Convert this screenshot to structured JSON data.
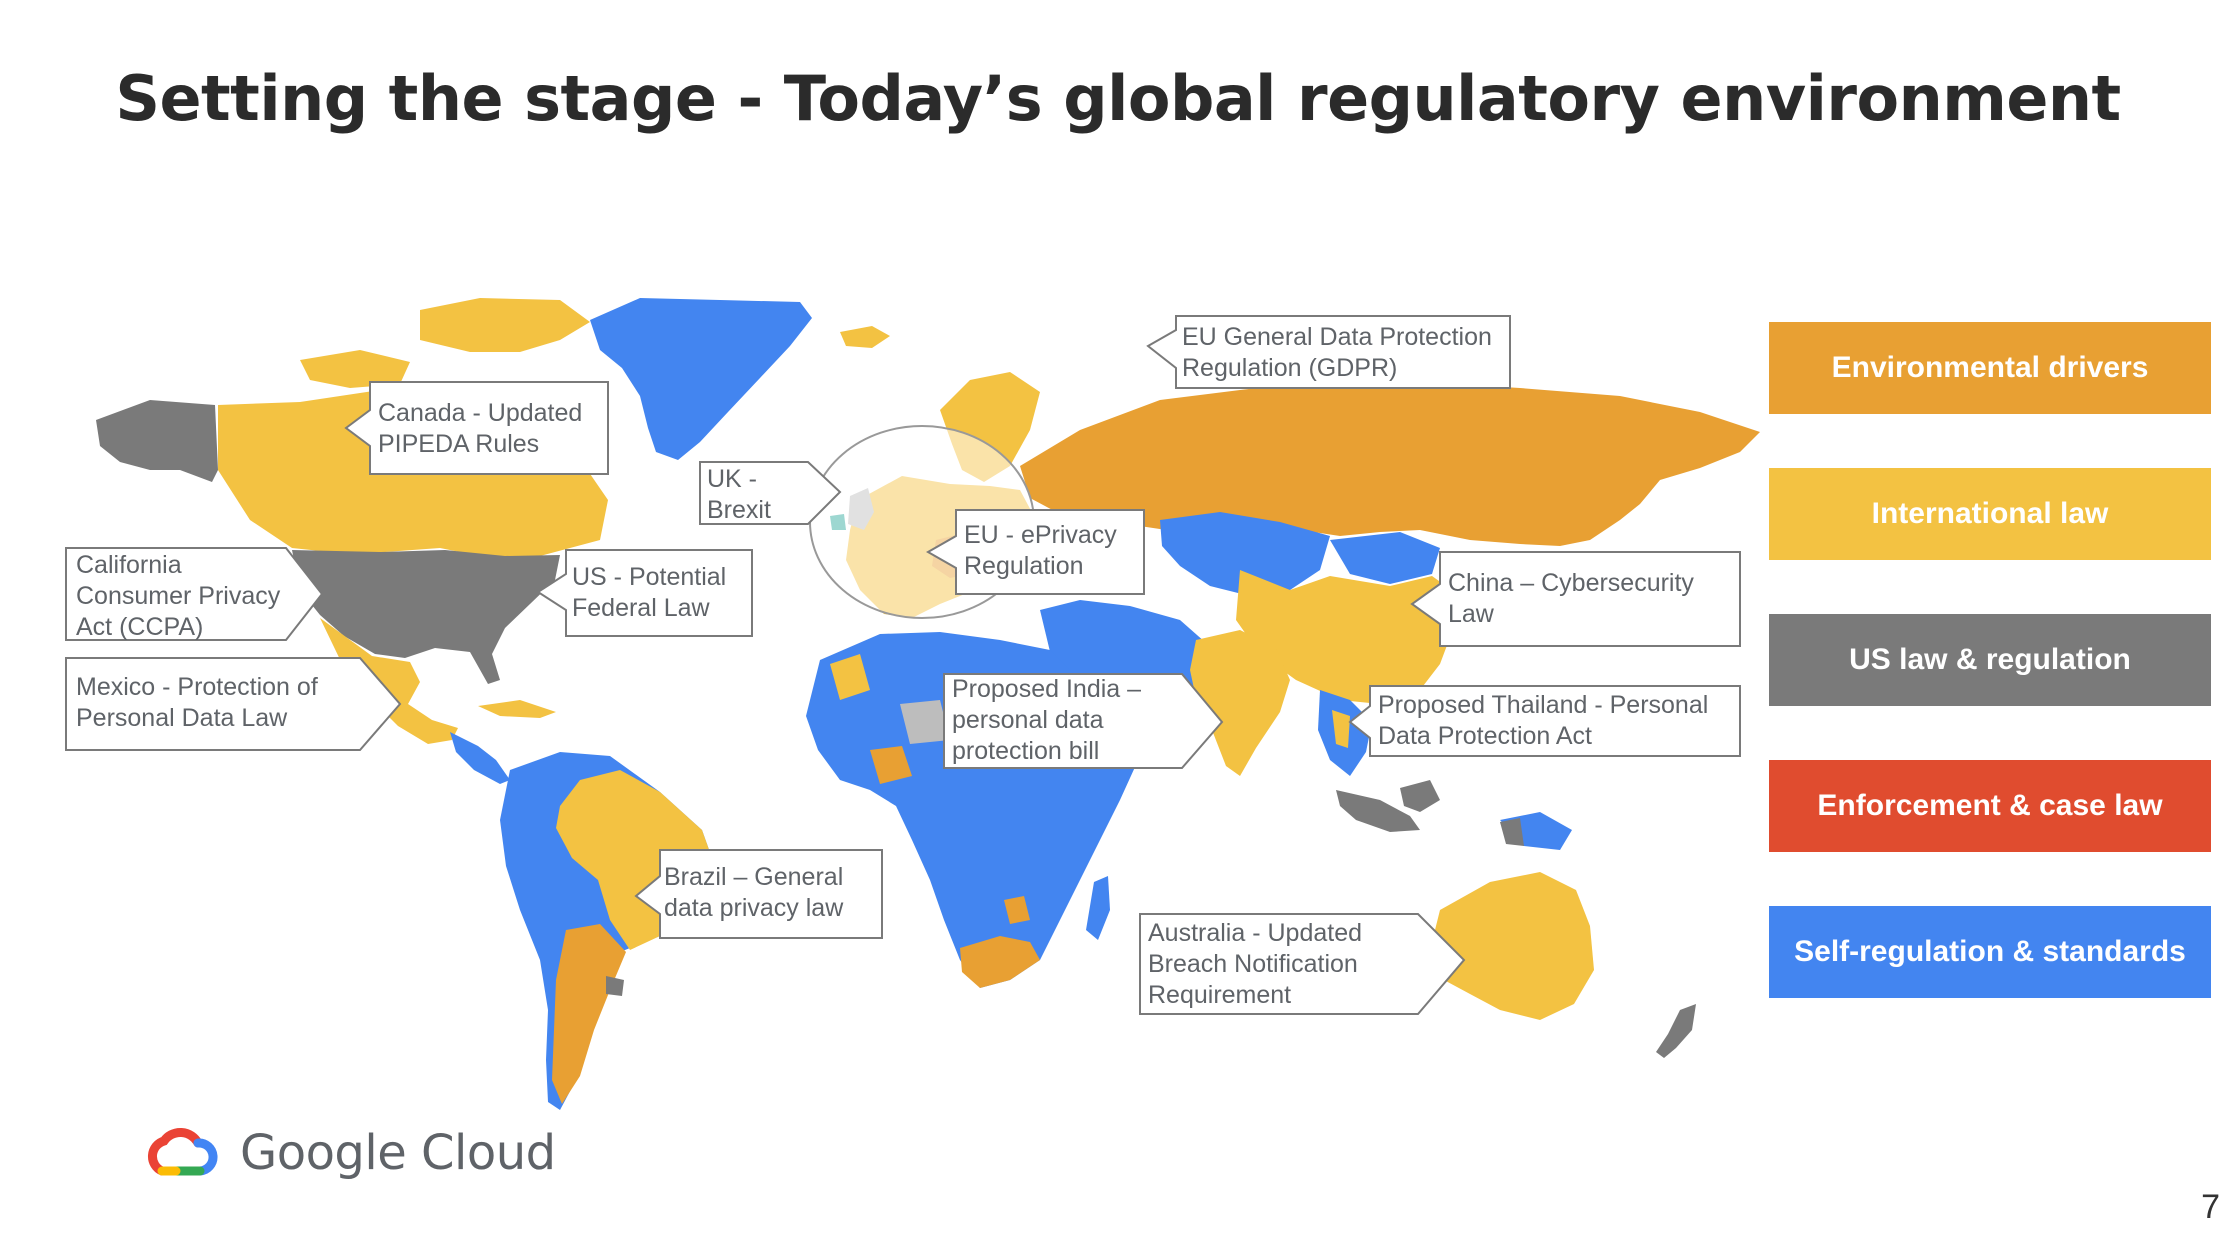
{
  "slide": {
    "title": "Setting the stage - Today’s global regulatory environment",
    "page_number": "7"
  },
  "colors": {
    "environmental": "#E8A033",
    "international": "#F3C242",
    "us": "#7A7A7A",
    "enforcement": "#E04C2F",
    "self_regulation": "#4385F0",
    "light_gray": "#BDBDBD",
    "teal": "#26A69A"
  },
  "legend": [
    {
      "label": "Environmental drivers",
      "color": "#E8A033"
    },
    {
      "label": "International law",
      "color": "#F3C242"
    },
    {
      "label": "US law & regulation",
      "color": "#7A7A7A"
    },
    {
      "label": "Enforcement & case law",
      "color": "#E04C2F"
    },
    {
      "label": "Self-regulation & standards",
      "color": "#4385F0"
    }
  ],
  "callouts": [
    {
      "id": "canada",
      "text": "Canada - Updated\nPIPEDA Rules"
    },
    {
      "id": "uk",
      "text": "UK -\nBrexit"
    },
    {
      "id": "eu-gdpr",
      "text": "EU General Data Protection\nRegulation (GDPR)"
    },
    {
      "id": "california",
      "text": "California\nConsumer Privacy\nAct (CCPA)"
    },
    {
      "id": "us-federal",
      "text": "US - Potential\nFederal Law"
    },
    {
      "id": "eu-eprivacy",
      "text": "EU - ePrivacy\nRegulation"
    },
    {
      "id": "china",
      "text": "China – Cybersecurity\nLaw"
    },
    {
      "id": "mexico",
      "text": "Mexico - Protection of\nPersonal Data Law"
    },
    {
      "id": "india",
      "text": "Proposed India –\npersonal data\nprotection bill"
    },
    {
      "id": "thailand",
      "text": "Proposed Thailand - Personal\nData Protection Act"
    },
    {
      "id": "brazil",
      "text": "Brazil – General\ndata privacy law"
    },
    {
      "id": "australia",
      "text": "Australia - Updated\nBreach Notification\nRequirement"
    }
  ],
  "logo": {
    "name": "google-cloud-icon",
    "text": "Google Cloud"
  }
}
